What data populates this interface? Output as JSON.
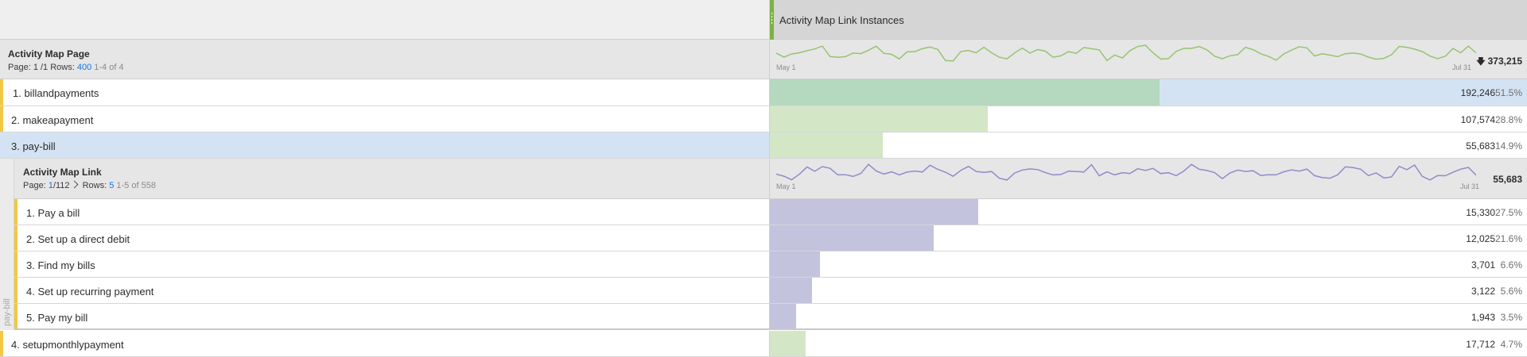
{
  "header": {
    "metric_title": "Activity Map Link Instances"
  },
  "page_breakdown": {
    "title": "Activity Map Page",
    "page_label": "Page:",
    "page_value": "1 /1",
    "rows_label": "Rows:",
    "rows_value": "400",
    "range_text": "1-4 of 4",
    "spark_start": "May 1",
    "spark_end": "Jul 31",
    "total": "373,215",
    "total_icon": "download-icon"
  },
  "page_rows": [
    {
      "label": "1. billandpayments",
      "value": "192,246",
      "pct": "51.5%",
      "fraction": 0.515
    },
    {
      "label": "2. makeapayment",
      "value": "107,574",
      "pct": "28.8%",
      "fraction": 0.288
    },
    {
      "label": "3. pay-bill",
      "value": "55,683",
      "pct": "14.9%",
      "fraction": 0.149
    },
    {
      "label": "4. setupmonthlypayment",
      "value": "17,712",
      "pct": "4.7%",
      "fraction": 0.047
    }
  ],
  "link_breakdown": {
    "side_label": "pay-bill",
    "title": "Activity Map Link",
    "page_label": "Page:",
    "page_current": "1",
    "page_total": "/112",
    "rows_label": "Rows:",
    "rows_value": "5",
    "range_text": "1-5 of 558",
    "spark_start": "May 1",
    "spark_end": "Jul 31",
    "total": "55,683"
  },
  "link_rows": [
    {
      "label": "1. Pay a bill",
      "value": "15,330",
      "pct": "27.5%",
      "fraction": 0.275
    },
    {
      "label": "2. Set up a direct debit",
      "value": "12,025",
      "pct": "21.6%",
      "fraction": 0.216
    },
    {
      "label": "3. Find my bills",
      "value": "3,701",
      "pct": "6.6%",
      "fraction": 0.066
    },
    {
      "label": "4. Set up recurring payment",
      "value": "3,122",
      "pct": "5.6%",
      "fraction": 0.056
    },
    {
      "label": "5. Pay my bill",
      "value": "1,943",
      "pct": "3.5%",
      "fraction": 0.035
    }
  ],
  "colors": {
    "green_bar": "#d3e7c7",
    "green_bar_dark": "#b4d9be",
    "selected_bg": "#d4e3f3",
    "purple_bar": "#c3c3de",
    "green_spark": "#97c470",
    "purple_spark": "#8f8ccb",
    "stripe": "#f2c744"
  }
}
